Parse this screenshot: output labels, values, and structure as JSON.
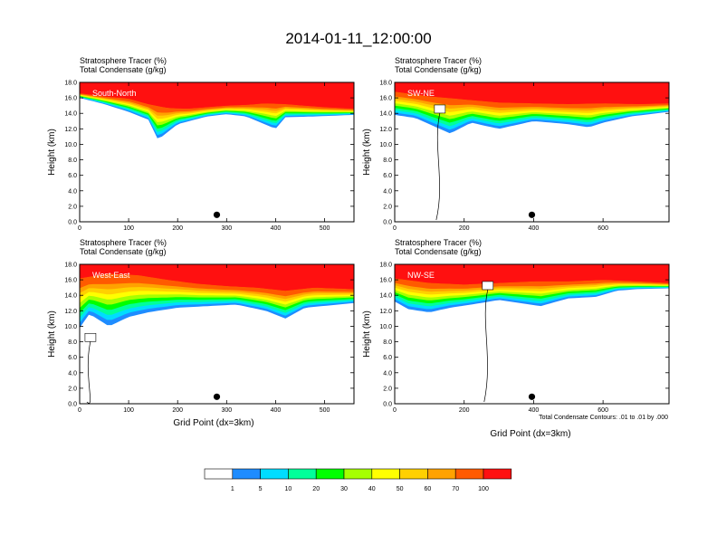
{
  "figure": {
    "title": "2014-01-11_12:00:00",
    "footnote": "Total Condensate Contours: .01 to .01 by .000",
    "xlabel": "Grid Point (dx=3km)",
    "ylabel": "Height (km)"
  },
  "colorbar": {
    "tick_labels": [
      "1",
      "5",
      "10",
      "20",
      "30",
      "40",
      "50",
      "60",
      "70",
      "100"
    ],
    "colors": [
      "#ffffff",
      "#1e8cff",
      "#00ddff",
      "#00ff9a",
      "#00ff00",
      "#a6ff00",
      "#ffff00",
      "#ffd000",
      "#ffa200",
      "#ff5a00",
      "#ff1010"
    ]
  },
  "chart_data": [
    {
      "type": "heatmap",
      "panel": "south-north",
      "label": "South-North",
      "header": [
        "Stratosphere Tracer   (%)",
        "Total Condensate   (g/kg)"
      ],
      "xlim": [
        0,
        560
      ],
      "ylim": [
        0,
        18
      ],
      "xticks": [
        0,
        100,
        200,
        300,
        400,
        500
      ],
      "yticks": [
        0,
        2,
        4,
        6,
        8,
        10,
        12,
        14,
        16,
        18
      ],
      "ytick_labels": [
        "0.0",
        "2.0",
        "4.0",
        "6.0",
        "8.0",
        "10.0",
        "12.0",
        "14.0",
        "16.0",
        "18.0"
      ],
      "marker_x": 280,
      "tracer_top_x": [
        0,
        50,
        100,
        140,
        180,
        220,
        260,
        300,
        340,
        380,
        420,
        460,
        500,
        560
      ],
      "tracer_top_y": [
        16.6,
        16.2,
        15.9,
        15.2,
        14.7,
        14.6,
        14.8,
        15.0,
        15.1,
        15.3,
        15.2,
        15.0,
        14.8,
        14.6
      ],
      "tracer_bottom_x": [
        0,
        50,
        100,
        140,
        160,
        200,
        260,
        300,
        340,
        400,
        420,
        480,
        560
      ],
      "tracer_bottom_y": [
        16.0,
        15.2,
        14.2,
        13.2,
        10.6,
        12.6,
        13.6,
        13.9,
        13.6,
        12.0,
        13.5,
        13.6,
        13.8
      ],
      "contour_label_x": null,
      "contour_label_y": null
    },
    {
      "type": "heatmap",
      "panel": "sw-ne",
      "label": "SW-NE",
      "header": [
        "Stratosphere Tracer   (%)",
        "Total Condensate   (g/kg)"
      ],
      "xlim": [
        0,
        790
      ],
      "ylim": [
        0,
        18
      ],
      "xticks": [
        0,
        200,
        400,
        600
      ],
      "yticks": [
        0,
        2,
        4,
        6,
        8,
        10,
        12,
        14,
        16,
        18
      ],
      "ytick_labels": [
        "0.0",
        "2.0",
        "4.0",
        "6.0",
        "8.0",
        "10.0",
        "12.0",
        "14.0",
        "16.0",
        "18.0"
      ],
      "marker_x": 395,
      "tracer_top_x": [
        0,
        100,
        200,
        300,
        400,
        500,
        600,
        700,
        790
      ],
      "tracer_top_y": [
        16.8,
        16.2,
        15.8,
        15.4,
        15.3,
        15.2,
        15.3,
        15.2,
        15.3
      ],
      "tracer_bottom_x": [
        0,
        60,
        120,
        160,
        220,
        300,
        400,
        500,
        560,
        600,
        680,
        790
      ],
      "tracer_bottom_y": [
        13.8,
        13.4,
        12.2,
        11.4,
        12.8,
        12.0,
        13.0,
        12.6,
        12.2,
        12.8,
        13.6,
        14.2
      ],
      "contour_label_x": 130,
      "contour_label_y": 14.5
    },
    {
      "type": "heatmap",
      "panel": "west-east",
      "label": "West-East",
      "header": [
        "Stratosphere Tracer   (%)",
        "Total Condensate   (g/kg)"
      ],
      "xlim": [
        0,
        560
      ],
      "ylim": [
        0,
        18
      ],
      "xticks": [
        0,
        100,
        200,
        300,
        400,
        500
      ],
      "yticks": [
        0,
        2,
        4,
        6,
        8,
        10,
        12,
        14,
        16,
        18
      ],
      "ytick_labels": [
        "0.0",
        "2.0",
        "4.0",
        "6.0",
        "8.0",
        "10.0",
        "12.0",
        "14.0",
        "16.0",
        "18.0"
      ],
      "marker_x": 280,
      "tracer_top_x": [
        0,
        60,
        120,
        180,
        240,
        300,
        360,
        420,
        480,
        560
      ],
      "tracer_top_y": [
        16.2,
        16.8,
        16.6,
        16.0,
        15.5,
        15.2,
        15.0,
        14.6,
        15.0,
        14.8
      ],
      "tracer_bottom_x": [
        0,
        20,
        60,
        100,
        140,
        200,
        260,
        320,
        380,
        420,
        460,
        560
      ],
      "tracer_bottom_y": [
        9.8,
        11.6,
        10.0,
        11.2,
        11.8,
        12.4,
        12.6,
        12.8,
        12.0,
        11.0,
        12.4,
        13.0
      ],
      "contour_label_x": 22,
      "contour_label_y": 8.5
    },
    {
      "type": "heatmap",
      "panel": "nw-se",
      "label": "NW-SE",
      "header": [
        "Stratosphere Tracer   (%)",
        "Total Condensate   (g/kg)"
      ],
      "xlim": [
        0,
        790
      ],
      "ylim": [
        0,
        18
      ],
      "xticks": [
        0,
        200,
        400,
        600
      ],
      "yticks": [
        0,
        2,
        4,
        6,
        8,
        10,
        12,
        14,
        16,
        18
      ],
      "ytick_labels": [
        "0.0",
        "2.0",
        "4.0",
        "6.0",
        "8.0",
        "10.0",
        "12.0",
        "14.0",
        "16.0",
        "18.0"
      ],
      "marker_x": 395,
      "tracer_top_x": [
        0,
        100,
        200,
        300,
        400,
        500,
        600,
        700,
        790
      ],
      "tracer_top_y": [
        16.2,
        15.6,
        15.4,
        15.6,
        15.8,
        15.8,
        16.0,
        15.8,
        15.6
      ],
      "tracer_bottom_x": [
        0,
        40,
        100,
        160,
        220,
        300,
        360,
        420,
        500,
        580,
        640,
        700,
        790
      ],
      "tracer_bottom_y": [
        13.2,
        12.2,
        11.8,
        12.4,
        12.8,
        13.4,
        13.0,
        12.6,
        13.6,
        13.8,
        14.6,
        14.8,
        14.9
      ],
      "contour_label_x": 268,
      "contour_label_y": 15.2
    }
  ]
}
